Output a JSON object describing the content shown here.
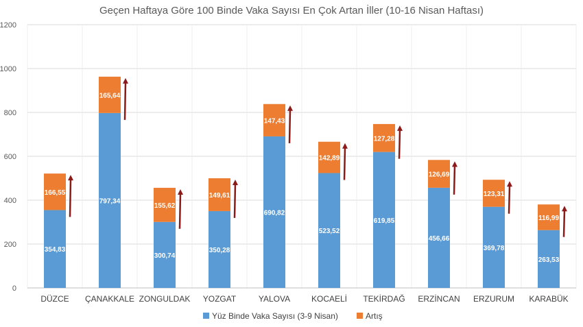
{
  "chart_data": {
    "type": "bar",
    "stacked": true,
    "title": "Geçen Haftaya Göre 100 Binde Vaka Sayısı En Çok Artan İller (10-16 Nisan Haftası)",
    "categories": [
      "DÜZCE",
      "ÇANAKKALE",
      "ZONGULDAK",
      "YOZGAT",
      "YALOVA",
      "KOCAELİ",
      "TEKİRDAĞ",
      "ERZİNCAN",
      "ERZURUM",
      "KARABÜK"
    ],
    "series": [
      {
        "name": "Yüz Binde Vaka Sayısı (3-9 Nisan)",
        "color": "#5b9bd5",
        "values": [
          354.83,
          797.34,
          300.74,
          350.28,
          690.82,
          523.52,
          619.85,
          456.66,
          369.78,
          263.53
        ],
        "labels": [
          "354,83",
          "797,34",
          "300,74",
          "350,28",
          "690,82",
          "523,52",
          "619,85",
          "456,66",
          "369,78",
          "263,53"
        ]
      },
      {
        "name": "Artış",
        "color": "#ed7d31",
        "values": [
          166.55,
          165.64,
          155.62,
          149.61,
          147.43,
          142.89,
          127.28,
          126.69,
          123.31,
          116.99
        ],
        "labels": [
          "166,55",
          "165,64",
          "155,62",
          "149,61",
          "147,43",
          "142,89",
          "127,28",
          "126,69",
          "123,31",
          "116,99"
        ]
      }
    ],
    "ylim": [
      0,
      1200
    ],
    "yticks": [
      0,
      200,
      400,
      600,
      800,
      1000,
      1200
    ],
    "ytick_labels": [
      "0",
      "200",
      "400",
      "600",
      "800",
      "1000",
      "1200"
    ],
    "grid": true,
    "legend_position": "bottom",
    "arrow_color": "#8b1a1a",
    "gridline_color": "#d9d9d9"
  }
}
